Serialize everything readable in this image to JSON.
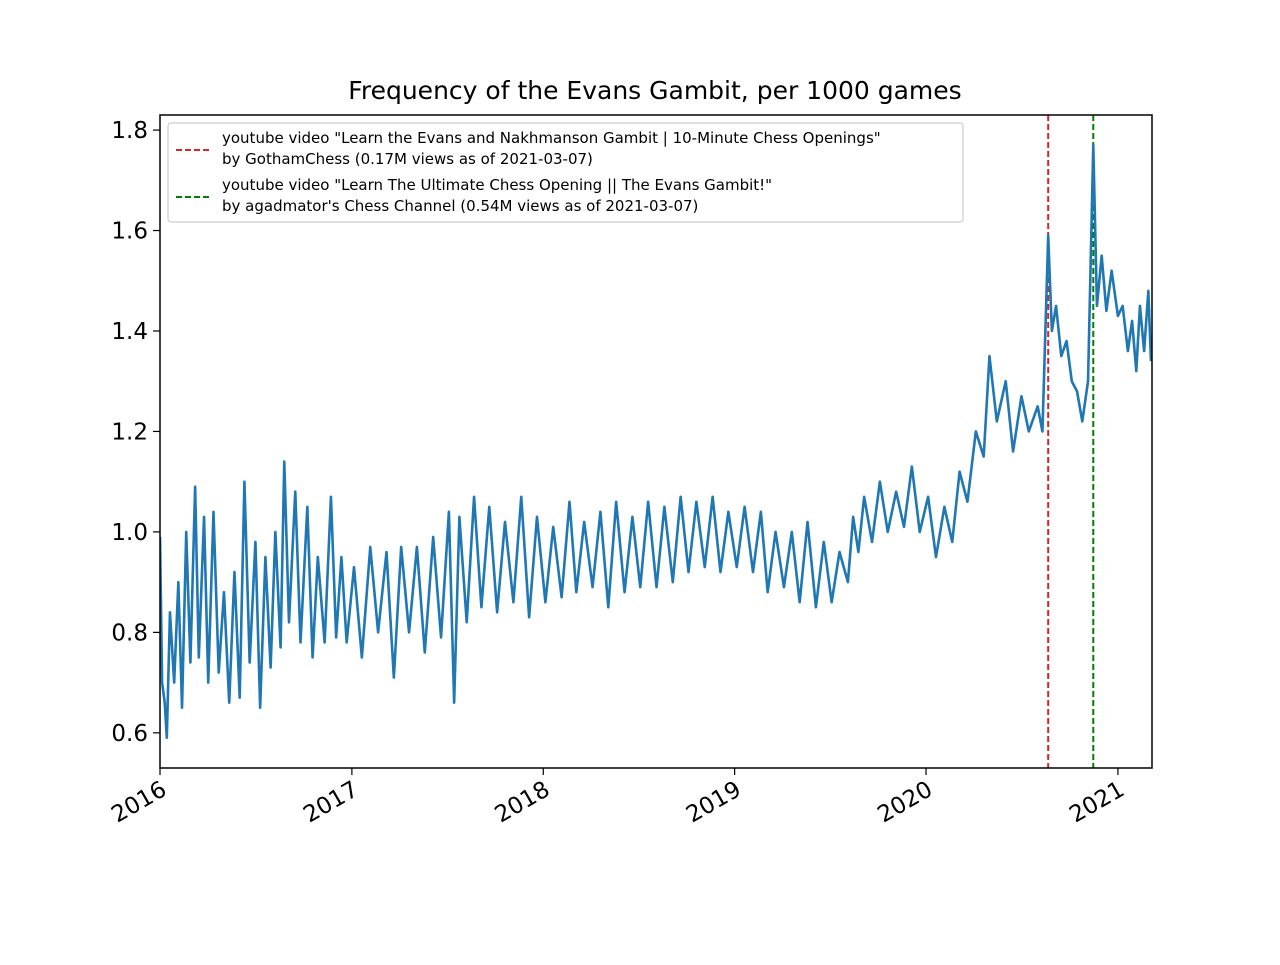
{
  "chart_data": {
    "type": "line",
    "title": "Frequency of the Evans Gambit, per 1000 games",
    "xlabel": "",
    "ylabel": "",
    "xlim": [
      "2016-01-01",
      "2021-03-07"
    ],
    "ylim": [
      0.53,
      1.83
    ],
    "x_ticks": [
      "2016",
      "2017",
      "2018",
      "2019",
      "2020",
      "2021"
    ],
    "y_ticks": [
      "0.6",
      "0.8",
      "1.0",
      "1.2",
      "1.4",
      "1.6",
      "1.8"
    ],
    "grid": false,
    "legend_position": "upper-left",
    "series": [
      {
        "color": "#1f77b4",
        "points": [
          [
            "2016-01-01",
            0.99
          ],
          [
            "2016-01-05",
            0.7
          ],
          [
            "2016-01-10",
            0.66
          ],
          [
            "2016-01-14",
            0.59
          ],
          [
            "2016-01-20",
            0.84
          ],
          [
            "2016-01-28",
            0.7
          ],
          [
            "2016-02-05",
            0.9
          ],
          [
            "2016-02-12",
            0.65
          ],
          [
            "2016-02-20",
            1.0
          ],
          [
            "2016-02-28",
            0.74
          ],
          [
            "2016-03-08",
            1.09
          ],
          [
            "2016-03-15",
            0.75
          ],
          [
            "2016-03-25",
            1.03
          ],
          [
            "2016-04-02",
            0.7
          ],
          [
            "2016-04-12",
            1.04
          ],
          [
            "2016-04-22",
            0.72
          ],
          [
            "2016-05-02",
            0.88
          ],
          [
            "2016-05-12",
            0.66
          ],
          [
            "2016-05-22",
            0.92
          ],
          [
            "2016-06-01",
            0.67
          ],
          [
            "2016-06-10",
            1.1
          ],
          [
            "2016-06-20",
            0.74
          ],
          [
            "2016-07-01",
            0.98
          ],
          [
            "2016-07-10",
            0.65
          ],
          [
            "2016-07-20",
            0.95
          ],
          [
            "2016-07-30",
            0.73
          ],
          [
            "2016-08-08",
            1.0
          ],
          [
            "2016-08-18",
            0.77
          ],
          [
            "2016-08-25",
            1.14
          ],
          [
            "2016-09-03",
            0.82
          ],
          [
            "2016-09-15",
            1.08
          ],
          [
            "2016-09-25",
            0.78
          ],
          [
            "2016-10-08",
            1.05
          ],
          [
            "2016-10-18",
            0.75
          ],
          [
            "2016-10-28",
            0.95
          ],
          [
            "2016-11-10",
            0.78
          ],
          [
            "2016-11-22",
            1.07
          ],
          [
            "2016-12-02",
            0.79
          ],
          [
            "2016-12-12",
            0.95
          ],
          [
            "2016-12-22",
            0.78
          ],
          [
            "2017-01-05",
            0.93
          ],
          [
            "2017-01-20",
            0.75
          ],
          [
            "2017-02-05",
            0.97
          ],
          [
            "2017-02-20",
            0.8
          ],
          [
            "2017-03-08",
            0.96
          ],
          [
            "2017-03-22",
            0.71
          ],
          [
            "2017-04-05",
            0.97
          ],
          [
            "2017-04-20",
            0.8
          ],
          [
            "2017-05-05",
            0.97
          ],
          [
            "2017-05-20",
            0.76
          ],
          [
            "2017-06-05",
            0.99
          ],
          [
            "2017-06-20",
            0.79
          ],
          [
            "2017-07-05",
            1.04
          ],
          [
            "2017-07-15",
            0.66
          ],
          [
            "2017-07-25",
            1.03
          ],
          [
            "2017-08-08",
            0.82
          ],
          [
            "2017-08-22",
            1.07
          ],
          [
            "2017-09-05",
            0.85
          ],
          [
            "2017-09-20",
            1.05
          ],
          [
            "2017-10-05",
            0.84
          ],
          [
            "2017-10-20",
            1.02
          ],
          [
            "2017-11-05",
            0.86
          ],
          [
            "2017-11-20",
            1.07
          ],
          [
            "2017-12-05",
            0.83
          ],
          [
            "2017-12-20",
            1.03
          ],
          [
            "2018-01-05",
            0.86
          ],
          [
            "2018-01-20",
            1.01
          ],
          [
            "2018-02-05",
            0.87
          ],
          [
            "2018-02-20",
            1.06
          ],
          [
            "2018-03-05",
            0.88
          ],
          [
            "2018-03-20",
            1.02
          ],
          [
            "2018-04-05",
            0.89
          ],
          [
            "2018-04-20",
            1.04
          ],
          [
            "2018-05-05",
            0.85
          ],
          [
            "2018-05-20",
            1.06
          ],
          [
            "2018-06-05",
            0.88
          ],
          [
            "2018-06-20",
            1.03
          ],
          [
            "2018-07-05",
            0.89
          ],
          [
            "2018-07-20",
            1.06
          ],
          [
            "2018-08-05",
            0.89
          ],
          [
            "2018-08-20",
            1.05
          ],
          [
            "2018-09-05",
            0.9
          ],
          [
            "2018-09-20",
            1.07
          ],
          [
            "2018-10-05",
            0.92
          ],
          [
            "2018-10-20",
            1.06
          ],
          [
            "2018-11-05",
            0.93
          ],
          [
            "2018-11-20",
            1.07
          ],
          [
            "2018-12-05",
            0.92
          ],
          [
            "2018-12-20",
            1.04
          ],
          [
            "2019-01-05",
            0.93
          ],
          [
            "2019-01-20",
            1.05
          ],
          [
            "2019-02-05",
            0.92
          ],
          [
            "2019-02-20",
            1.04
          ],
          [
            "2019-03-05",
            0.88
          ],
          [
            "2019-03-20",
            1.0
          ],
          [
            "2019-04-05",
            0.89
          ],
          [
            "2019-04-20",
            1.0
          ],
          [
            "2019-05-05",
            0.86
          ],
          [
            "2019-05-20",
            1.02
          ],
          [
            "2019-06-05",
            0.85
          ],
          [
            "2019-06-20",
            0.98
          ],
          [
            "2019-07-05",
            0.86
          ],
          [
            "2019-07-20",
            0.96
          ],
          [
            "2019-08-05",
            0.9
          ],
          [
            "2019-08-15",
            1.03
          ],
          [
            "2019-08-25",
            0.96
          ],
          [
            "2019-09-05",
            1.07
          ],
          [
            "2019-09-20",
            0.98
          ],
          [
            "2019-10-05",
            1.1
          ],
          [
            "2019-10-20",
            1.0
          ],
          [
            "2019-11-05",
            1.08
          ],
          [
            "2019-11-20",
            1.01
          ],
          [
            "2019-12-05",
            1.13
          ],
          [
            "2019-12-20",
            1.0
          ],
          [
            "2020-01-05",
            1.07
          ],
          [
            "2020-01-20",
            0.95
          ],
          [
            "2020-02-05",
            1.05
          ],
          [
            "2020-02-20",
            0.98
          ],
          [
            "2020-03-05",
            1.12
          ],
          [
            "2020-03-20",
            1.06
          ],
          [
            "2020-04-05",
            1.2
          ],
          [
            "2020-04-20",
            1.15
          ],
          [
            "2020-05-01",
            1.35
          ],
          [
            "2020-05-15",
            1.22
          ],
          [
            "2020-06-01",
            1.3
          ],
          [
            "2020-06-15",
            1.16
          ],
          [
            "2020-07-01",
            1.27
          ],
          [
            "2020-07-15",
            1.2
          ],
          [
            "2020-08-01",
            1.25
          ],
          [
            "2020-08-10",
            1.2
          ],
          [
            "2020-08-21",
            1.59
          ],
          [
            "2020-08-28",
            1.4
          ],
          [
            "2020-09-05",
            1.45
          ],
          [
            "2020-09-15",
            1.35
          ],
          [
            "2020-09-25",
            1.38
          ],
          [
            "2020-10-05",
            1.3
          ],
          [
            "2020-10-15",
            1.28
          ],
          [
            "2020-10-25",
            1.22
          ],
          [
            "2020-11-05",
            1.3
          ],
          [
            "2020-11-15",
            1.77
          ],
          [
            "2020-11-22",
            1.45
          ],
          [
            "2020-12-01",
            1.55
          ],
          [
            "2020-12-10",
            1.44
          ],
          [
            "2020-12-20",
            1.52
          ],
          [
            "2021-01-01",
            1.43
          ],
          [
            "2021-01-10",
            1.45
          ],
          [
            "2021-01-20",
            1.36
          ],
          [
            "2021-01-28",
            1.42
          ],
          [
            "2021-02-05",
            1.32
          ],
          [
            "2021-02-12",
            1.45
          ],
          [
            "2021-02-20",
            1.36
          ],
          [
            "2021-02-28",
            1.48
          ],
          [
            "2021-03-05",
            1.34
          ]
        ]
      }
    ],
    "vlines": [
      {
        "x": "2020-08-21",
        "color": "#d62728",
        "style": "dashed",
        "label": "youtube video \"Learn the Evans and Nakhmanson Gambit | 10-Minute Chess Openings\"\nby GothamChess (0.17M views as of 2021-03-07)",
        "label_line1": "youtube video \"Learn the Evans and Nakhmanson Gambit | 10-Minute Chess Openings\"",
        "label_line2": "by GothamChess (0.17M views as of 2021-03-07)"
      },
      {
        "x": "2020-11-15",
        "color": "#008000",
        "style": "dashed",
        "label": "youtube video \"Learn The Ultimate Chess Opening || The Evans Gambit!\"\nby agadmator's Chess Channel (0.54M views as of 2021-03-07)",
        "label_line1": "youtube video \"Learn The Ultimate Chess Opening || The Evans Gambit!\"",
        "label_line2": "by agadmator's Chess Channel (0.54M views as of 2021-03-07)"
      }
    ]
  }
}
